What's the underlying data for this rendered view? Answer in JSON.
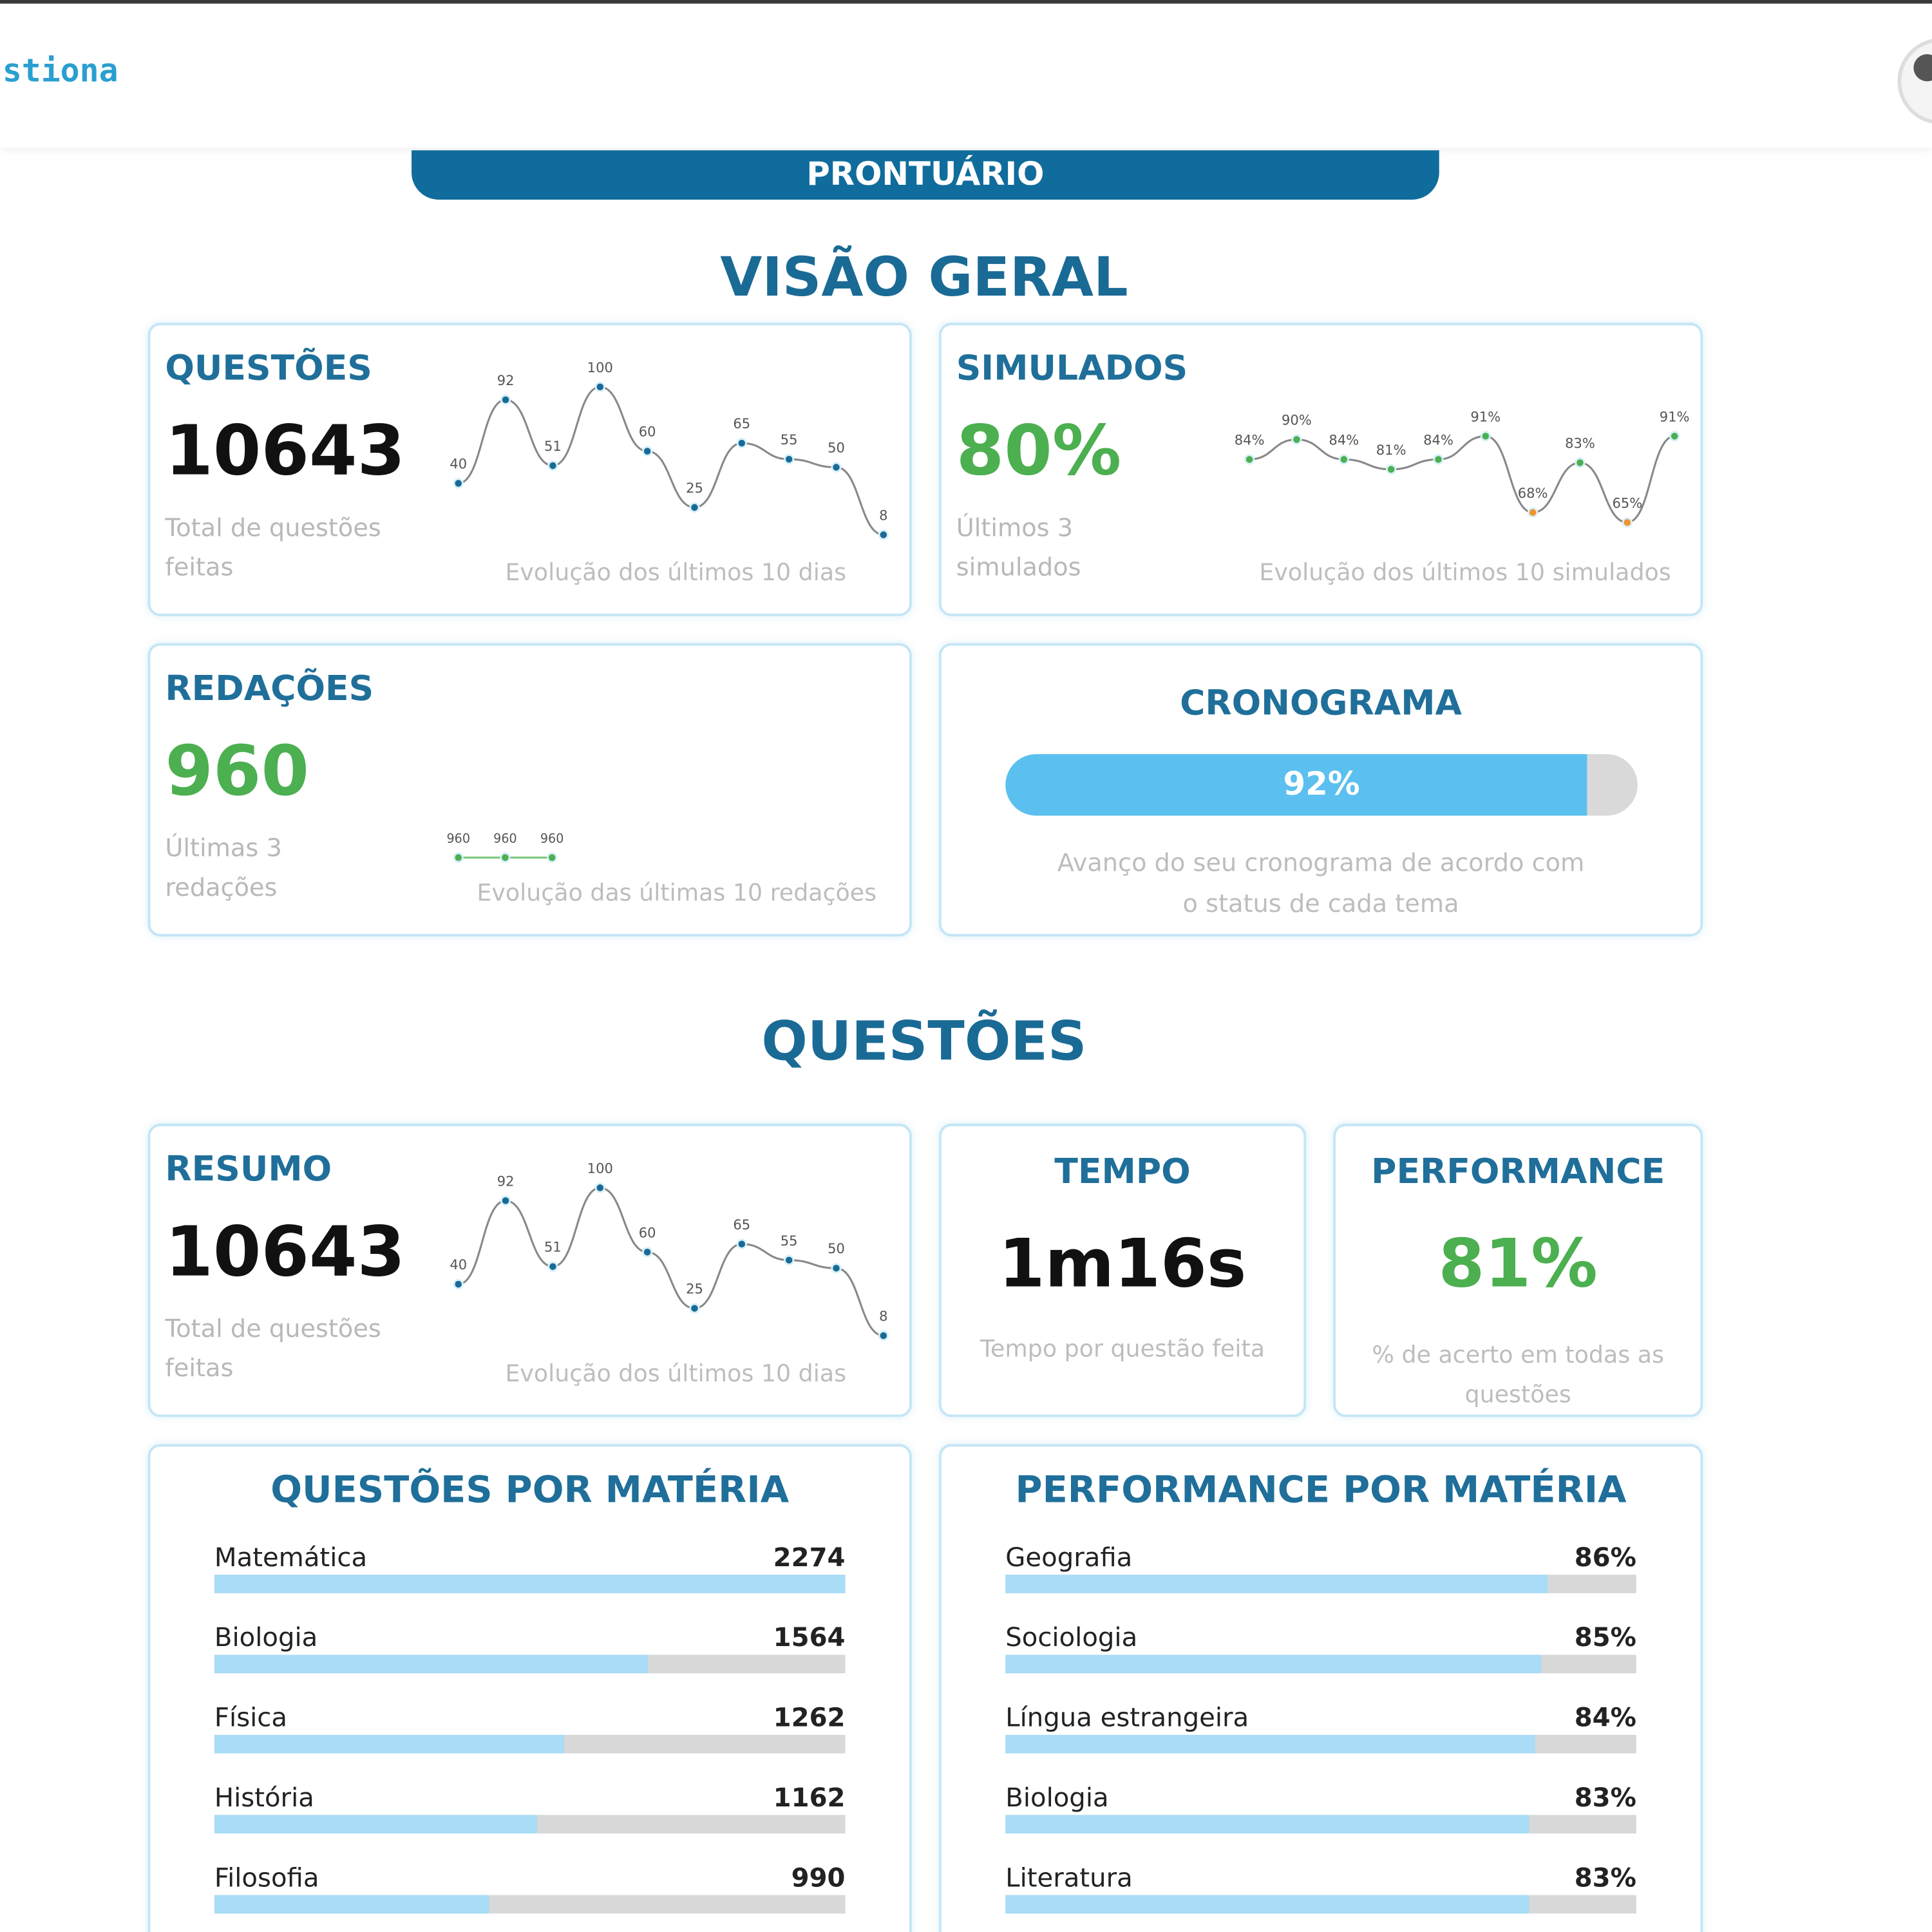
{
  "header": {
    "logo_text": "stiona",
    "avatar_icon": "user-avatar-icon"
  },
  "tab": {
    "label": "PRONTUÁRIO"
  },
  "overview": {
    "title": "VISÃO GERAL",
    "questoes": {
      "title": "QUESTÕES",
      "value": "10643",
      "sub": "Total de questões feitas",
      "caption": "Evolução dos últimos 10 dias",
      "chart_labels": [
        "40",
        "92",
        "51",
        "100",
        "60",
        "25",
        "65",
        "55",
        "50",
        "8"
      ],
      "chart_values": [
        40,
        92,
        51,
        100,
        60,
        25,
        65,
        55,
        50,
        8
      ]
    },
    "simulados": {
      "title": "SIMULADOS",
      "value": "80%",
      "sub": "Últimos 3 simulados",
      "caption": "Evolução dos últimos 10 simulados",
      "chart_labels": [
        "84%",
        "90%",
        "84%",
        "81%",
        "84%",
        "91%",
        "68%",
        "83%",
        "65%",
        "91%"
      ],
      "chart_values": [
        84,
        90,
        84,
        81,
        84,
        91,
        68,
        83,
        65,
        91
      ],
      "point_colors": [
        "#4caf50",
        "#4caf50",
        "#4caf50",
        "#4caf50",
        "#4caf50",
        "#4caf50",
        "#f0932b",
        "#4caf50",
        "#f0932b",
        "#4caf50"
      ]
    },
    "redacoes": {
      "title": "REDAÇÕES",
      "value": "960",
      "sub": "Últimas 3 redações",
      "caption": "Evolução das últimas 10 redações",
      "chart_labels": [
        "960",
        "960",
        "960"
      ],
      "chart_values": [
        960,
        960,
        960
      ]
    },
    "cronograma": {
      "title": "CRONOGRAMA",
      "progress": 92,
      "progress_label": "92%",
      "caption_line1": "Avanço do seu cronograma de acordo com",
      "caption_line2": "o status de cada tema"
    }
  },
  "questoes": {
    "title": "QUESTÕES",
    "resumo": {
      "title": "RESUMO",
      "value": "10643",
      "sub": "Total de questões feitas",
      "caption": "Evolução dos últimos 10 dias",
      "chart_labels": [
        "40",
        "92",
        "51",
        "100",
        "60",
        "25",
        "65",
        "55",
        "50",
        "8"
      ],
      "chart_values": [
        40,
        92,
        51,
        100,
        60,
        25,
        65,
        55,
        50,
        8
      ]
    },
    "tempo": {
      "title": "TEMPO",
      "value": "1m16s",
      "sub": "Tempo por questão feita"
    },
    "performance": {
      "title": "PERFORMANCE",
      "value": "81%",
      "sub": "% de acerto em todas as questões"
    },
    "por_materia": {
      "title": "QUESTÕES POR MATÉRIA",
      "max": 2274,
      "items": [
        {
          "label": "Matemática",
          "value": 2274,
          "display": "2274"
        },
        {
          "label": "Biologia",
          "value": 1564,
          "display": "1564"
        },
        {
          "label": "Física",
          "value": 1262,
          "display": "1262"
        },
        {
          "label": "História",
          "value": 1162,
          "display": "1162"
        },
        {
          "label": "Filosofia",
          "value": 990,
          "display": "990"
        }
      ]
    },
    "performance_materia": {
      "title": "PERFORMANCE POR MATÉRIA",
      "max": 100,
      "items": [
        {
          "label": "Geografia",
          "value": 86,
          "display": "86%"
        },
        {
          "label": "Sociologia",
          "value": 85,
          "display": "85%"
        },
        {
          "label": "Língua estrangeira",
          "value": 84,
          "display": "84%"
        },
        {
          "label": "Biologia",
          "value": 83,
          "display": "83%"
        },
        {
          "label": "Literatura",
          "value": 83,
          "display": "83%"
        }
      ]
    }
  },
  "colors": {
    "primary": "#0f6c9c",
    "title": "#1f6f9a",
    "green": "#4caf50",
    "orange": "#f0932b",
    "progress": "#5bc0f0",
    "bar": "#a9dcf6",
    "track": "#d8d8d8"
  }
}
